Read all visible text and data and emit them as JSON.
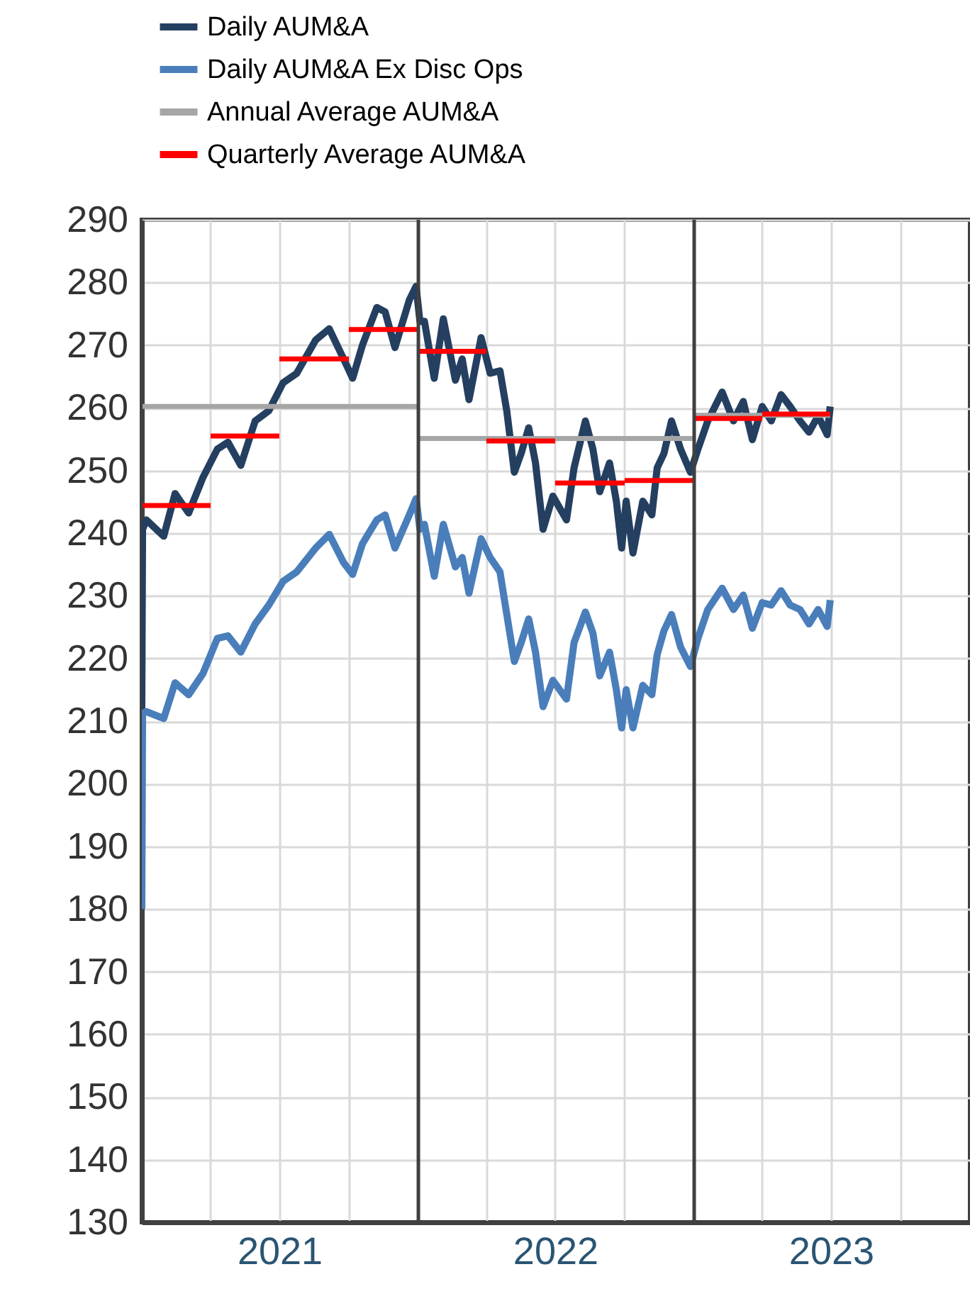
{
  "chart_data": {
    "type": "line",
    "x": [
      "2020-12-31",
      "2021-01-01",
      "2021-01-06",
      "2021-01-29",
      "2021-02-13",
      "2021-03-03",
      "2021-03-22",
      "2021-04-10",
      "2021-04-24",
      "2021-05-11",
      "2021-05-30",
      "2021-06-17",
      "2021-07-06",
      "2021-07-24",
      "2021-08-18",
      "2021-09-05",
      "2021-09-24",
      "2021-10-06",
      "2021-10-19",
      "2021-11-07",
      "2021-11-18",
      "2021-12-01",
      "2021-12-20",
      "2021-12-29",
      "2022-01-03",
      "2022-01-09",
      "2022-01-22",
      "2022-02-03",
      "2022-02-19",
      "2022-02-28",
      "2022-03-09",
      "2022-03-25",
      "2022-04-06",
      "2022-04-19",
      "2022-04-28",
      "2022-05-08",
      "2022-05-17",
      "2022-05-27",
      "2022-06-05",
      "2022-06-15",
      "2022-06-28",
      "2022-07-16",
      "2022-07-26",
      "2022-08-10",
      "2022-08-20",
      "2022-08-29",
      "2022-09-11",
      "2022-09-20",
      "2022-09-27",
      "2022-10-03",
      "2022-10-12",
      "2022-10-25",
      "2022-11-06",
      "2022-11-13",
      "2022-11-22",
      "2022-12-02",
      "2022-12-14",
      "2022-12-27",
      "2023-01-06",
      "2023-01-19",
      "2023-02-07",
      "2023-02-22",
      "2023-03-07",
      "2023-03-19",
      "2023-04-01",
      "2023-04-13",
      "2023-04-26",
      "2023-05-08",
      "2023-05-21",
      "2023-06-02",
      "2023-06-14",
      "2023-06-26",
      "2023-06-30"
    ],
    "series": [
      {
        "name": "Daily AUM&A",
        "color": "#243f60",
        "values": [
          212,
          240.6,
          242.1,
          239.5,
          246.3,
          243.2,
          248.9,
          253.4,
          254.5,
          250.8,
          257.9,
          259.5,
          264,
          265.5,
          270.8,
          272.6,
          267.8,
          264.7,
          270,
          276,
          275.3,
          269.6,
          277.2,
          279.4,
          273.8,
          273.8,
          264.7,
          274.2,
          264.4,
          267.8,
          261.3,
          271.2,
          265.5,
          265.9,
          259.5,
          249.7,
          252.7,
          256.8,
          251.2,
          240.6,
          245.9,
          242.1,
          250.4,
          257.9,
          253.4,
          246.6,
          251.2,
          245.1,
          237.6,
          245.1,
          236.8,
          245.1,
          242.9,
          250.4,
          252.7,
          257.9,
          253.4,
          249.7,
          253.4,
          257.9,
          262.5,
          257.9,
          261,
          254.9,
          260.2,
          257.9,
          262.1,
          260.2,
          257.9,
          256.1,
          258.7,
          255.7,
          260.2
        ]
      },
      {
        "name": "Daily AUM&A Ex Disc Ops",
        "color": "#4a7ebb",
        "values": [
          180,
          211.2,
          211.5,
          210.4,
          216.1,
          214.2,
          217.6,
          223.2,
          223.6,
          221,
          225.5,
          228.5,
          232.3,
          233.8,
          237.6,
          239.8,
          235.3,
          233.4,
          238.3,
          242.1,
          242.9,
          237.6,
          242.9,
          245.5,
          240.6,
          241.4,
          233.1,
          241.4,
          234.6,
          236.1,
          230.4,
          239.1,
          236.1,
          233.8,
          227,
          219.5,
          222.5,
          226.3,
          221,
          212.3,
          216.5,
          213.5,
          222.5,
          227.4,
          224,
          217.2,
          221,
          215,
          208.9,
          215,
          208.9,
          215.7,
          214.2,
          220.6,
          224.4,
          227,
          221.8,
          218.7,
          223.2,
          227.8,
          231.2,
          227.8,
          230.1,
          224.8,
          228.9,
          228.5,
          230.8,
          228.5,
          227.8,
          225.5,
          227.8,
          225.1,
          229.3
        ]
      },
      {
        "name": "Annual Average AUM&A",
        "color": "#a6a6a6",
        "x": [
          "2021-01-01",
          "2022-01-01",
          "2022-01-01",
          "2023-01-01",
          "2023-01-01",
          "2023-06-30"
        ],
        "values": [
          260.2,
          260.2,
          255.1,
          255.1,
          258.8,
          258.8
        ]
      },
      {
        "name": "Quarterly Average AUM&A",
        "color": "#ff0000",
        "x": [
          "2021-01-01",
          "2021-04-01",
          "2021-04-01",
          "2021-07-01",
          "2021-07-01",
          "2021-10-01",
          "2021-10-01",
          "2022-01-01",
          "2022-01-01",
          "2022-04-01",
          "2022-04-01",
          "2022-07-01",
          "2022-07-01",
          "2022-10-01",
          "2022-10-01",
          "2023-01-01",
          "2023-01-01",
          "2023-04-01",
          "2023-04-01",
          "2023-06-30"
        ],
        "values": [
          244.4,
          244.4,
          255.5,
          255.5,
          267.8,
          267.8,
          272.5,
          272.5,
          269,
          269,
          254.7,
          254.7,
          248,
          248,
          248.4,
          248.4,
          258.3,
          258.3,
          259,
          259
        ]
      }
    ],
    "xlim": [
      "2020-12-31",
      "2024-01-01"
    ],
    "xticks": [
      {
        "value": "2021-04-01",
        "label": null
      },
      {
        "value": "2021-07-01",
        "label": "2021"
      },
      {
        "value": "2021-10-01",
        "label": null
      },
      {
        "value": "2022-04-01",
        "label": null
      },
      {
        "value": "2022-07-01",
        "label": "2022"
      },
      {
        "value": "2022-10-01",
        "label": null
      },
      {
        "value": "2023-04-01",
        "label": null
      },
      {
        "value": "2023-07-01",
        "label": "2023"
      },
      {
        "value": "2023-10-01",
        "label": null
      }
    ],
    "ylim": [
      130,
      290
    ],
    "yticks": [
      130,
      140,
      150,
      160,
      170,
      180,
      190,
      200,
      210,
      220,
      230,
      240,
      250,
      260,
      270,
      280,
      290
    ],
    "grid": true,
    "legend": "top",
    "ref_lines": [
      {
        "axis": "x",
        "value": "2022-01-01",
        "color": "#404040"
      },
      {
        "axis": "x",
        "value": "2023-01-01",
        "color": "#404040"
      }
    ]
  }
}
